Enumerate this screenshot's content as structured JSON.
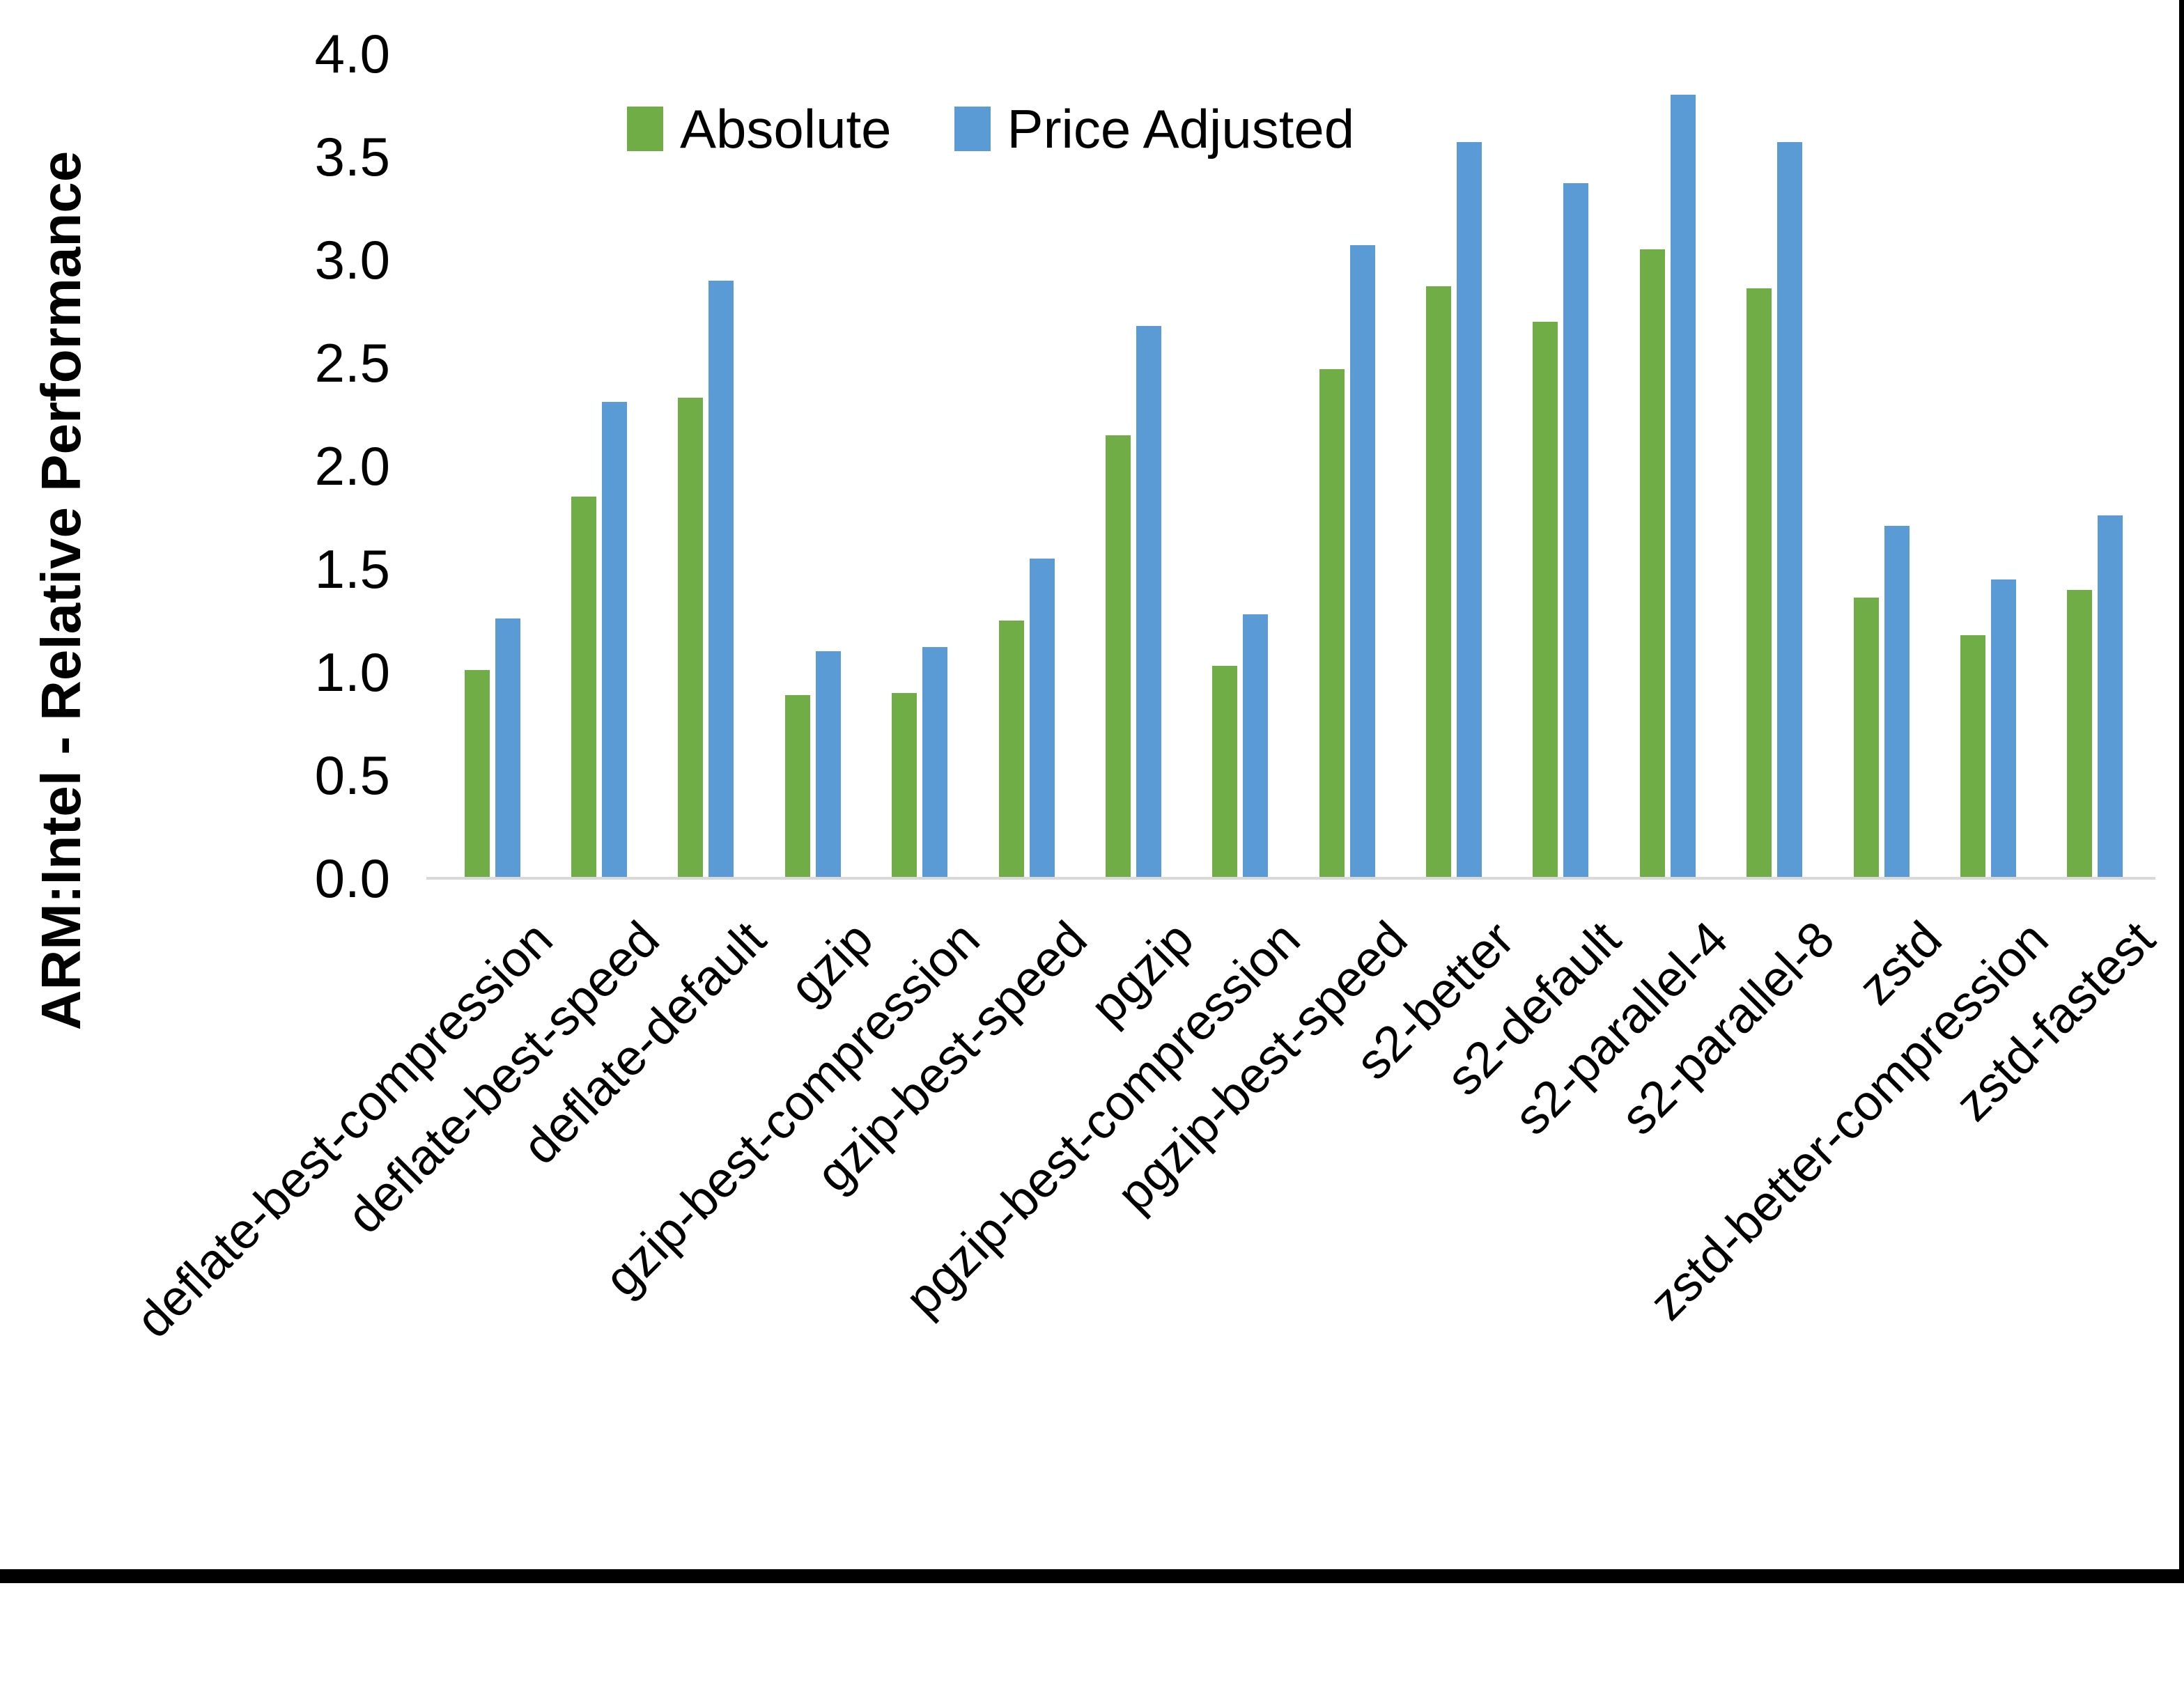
{
  "chart_data": {
    "type": "bar",
    "title": "",
    "xlabel": "",
    "ylabel": "ARM:Intel - Relative Performance",
    "ylim": [
      0.0,
      4.0
    ],
    "ytick_step": 0.5,
    "yticks": [
      "0.0",
      "0.5",
      "1.0",
      "1.5",
      "2.0",
      "2.5",
      "3.0",
      "3.5",
      "4.0"
    ],
    "grid": false,
    "legend_position": "top-center",
    "axis_line_color": "#D9D9D9",
    "categories": [
      "deflate-best-compression",
      "deflate-best-speed",
      "deflate-default",
      "gzip",
      "gzip-best-compression",
      "gzip-best-speed",
      "pgzip",
      "pgzip-best-compression",
      "pgzip-best-speed",
      "s2-better",
      "s2-default",
      "s2-parallel-4",
      "s2-parallel-8",
      "zstd",
      "zstd-better-compression",
      "zstd-fastest"
    ],
    "series": [
      {
        "name": "Absolute",
        "color": "#70AD47",
        "values": [
          1.01,
          1.85,
          2.33,
          0.89,
          0.9,
          1.25,
          2.15,
          1.03,
          2.47,
          2.87,
          2.7,
          3.05,
          2.86,
          1.36,
          1.18,
          1.4
        ]
      },
      {
        "name": "Price Adjusted",
        "color": "#5B9BD5",
        "values": [
          1.26,
          2.31,
          2.9,
          1.1,
          1.12,
          1.55,
          2.68,
          1.28,
          3.07,
          3.57,
          3.37,
          3.8,
          3.57,
          1.71,
          1.45,
          1.76
        ]
      }
    ]
  },
  "page": {
    "background": "#FFFFFF",
    "border_color": "#000000",
    "text_color": "#000000"
  }
}
